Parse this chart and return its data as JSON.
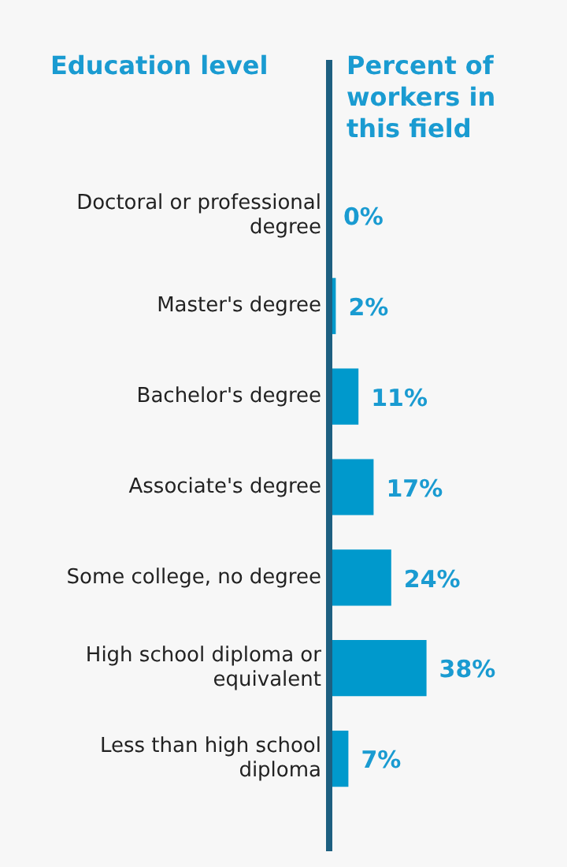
{
  "chart_data": {
    "type": "bar",
    "orientation": "horizontal",
    "ylabel": "Education level",
    "xlabel": "Percent of workers in this field",
    "categories": [
      "Doctoral or professional degree",
      "Master's degree",
      "Bachelor's degree",
      "Associate's degree",
      "Some college, no degree",
      "High school diploma or equivalent",
      "Less than high school diploma"
    ],
    "values": [
      0,
      2,
      11,
      17,
      24,
      38,
      7
    ],
    "value_labels": [
      "0%",
      "2%",
      "11%",
      "17%",
      "24%",
      "38%",
      "7%"
    ],
    "color": "#0099cc",
    "grid": false,
    "legend": false
  }
}
